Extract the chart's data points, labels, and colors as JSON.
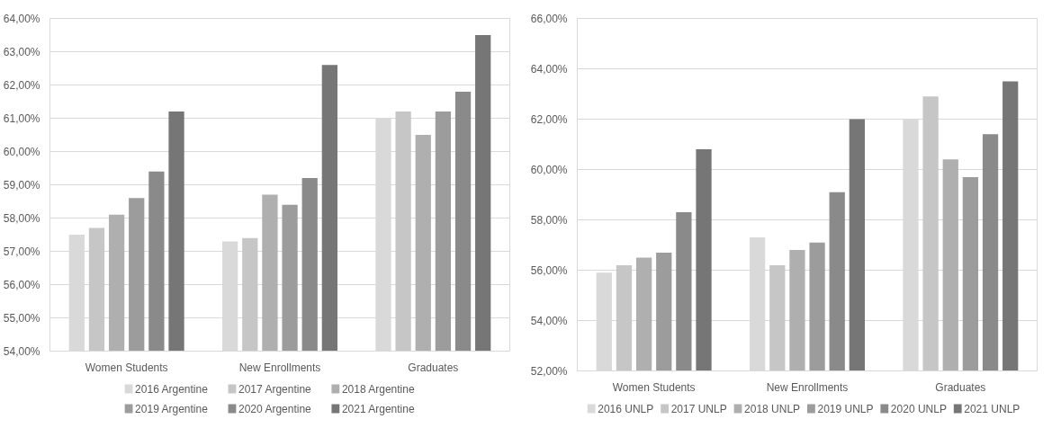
{
  "chart_data": [
    {
      "type": "bar",
      "categories": [
        "Women Students",
        "New Enrollments",
        "Graduates"
      ],
      "series": [
        {
          "name": "2016 Argentine",
          "color": "#d9d9d9",
          "values": [
            57.5,
            57.3,
            61.0
          ]
        },
        {
          "name": "2017 Argentine",
          "color": "#c6c6c6",
          "values": [
            57.7,
            57.4,
            61.2
          ]
        },
        {
          "name": "2018 Argentine",
          "color": "#afafaf",
          "values": [
            58.1,
            58.7,
            60.5
          ]
        },
        {
          "name": "2019 Argentine",
          "color": "#9c9c9c",
          "values": [
            58.6,
            58.4,
            61.2
          ]
        },
        {
          "name": "2020 Argentine",
          "color": "#8a8a8a",
          "values": [
            59.4,
            59.2,
            61.8
          ]
        },
        {
          "name": "2021 Argentine",
          "color": "#767676",
          "values": [
            61.2,
            62.6,
            63.5
          ]
        }
      ],
      "ylim": [
        54,
        64
      ],
      "yticks": [
        {
          "value": 54,
          "label": "54,00%"
        },
        {
          "value": 55,
          "label": "55,00%"
        },
        {
          "value": 56,
          "label": "56,00%"
        },
        {
          "value": 57,
          "label": "57,00%"
        },
        {
          "value": 58,
          "label": "58,00%"
        },
        {
          "value": 59,
          "label": "59,00%"
        },
        {
          "value": 60,
          "label": "60,00%"
        },
        {
          "value": 61,
          "label": "61,00%"
        },
        {
          "value": 62,
          "label": "62,00%"
        },
        {
          "value": 63,
          "label": "63,00%"
        },
        {
          "value": 64,
          "label": "64,00%"
        }
      ],
      "grid": "y",
      "legend": "bottom"
    },
    {
      "type": "bar",
      "categories": [
        "Women Students",
        "New Enrollments",
        "Graduates"
      ],
      "series": [
        {
          "name": "2016 UNLP",
          "color": "#d9d9d9",
          "values": [
            55.9,
            57.3,
            62.0
          ]
        },
        {
          "name": "2017 UNLP",
          "color": "#c6c6c6",
          "values": [
            56.2,
            56.2,
            62.9
          ]
        },
        {
          "name": "2018 UNLP",
          "color": "#afafaf",
          "values": [
            56.5,
            56.8,
            60.4
          ]
        },
        {
          "name": "2019 UNLP",
          "color": "#9c9c9c",
          "values": [
            56.7,
            57.1,
            59.7
          ]
        },
        {
          "name": "2020 UNLP",
          "color": "#8a8a8a",
          "values": [
            58.3,
            59.1,
            61.4
          ]
        },
        {
          "name": "2021 UNLP",
          "color": "#767676",
          "values": [
            60.8,
            62.0,
            63.5
          ]
        }
      ],
      "ylim": [
        52,
        66
      ],
      "yticks": [
        {
          "value": 52,
          "label": "52,00%"
        },
        {
          "value": 54,
          "label": "54,00%"
        },
        {
          "value": 56,
          "label": "56,00%"
        },
        {
          "value": 58,
          "label": "58,00%"
        },
        {
          "value": 60,
          "label": "60,00%"
        },
        {
          "value": 62,
          "label": "62,00%"
        },
        {
          "value": 64,
          "label": "64,00%"
        },
        {
          "value": 66,
          "label": "66,00%"
        }
      ],
      "grid": "y",
      "legend": "bottom"
    }
  ]
}
